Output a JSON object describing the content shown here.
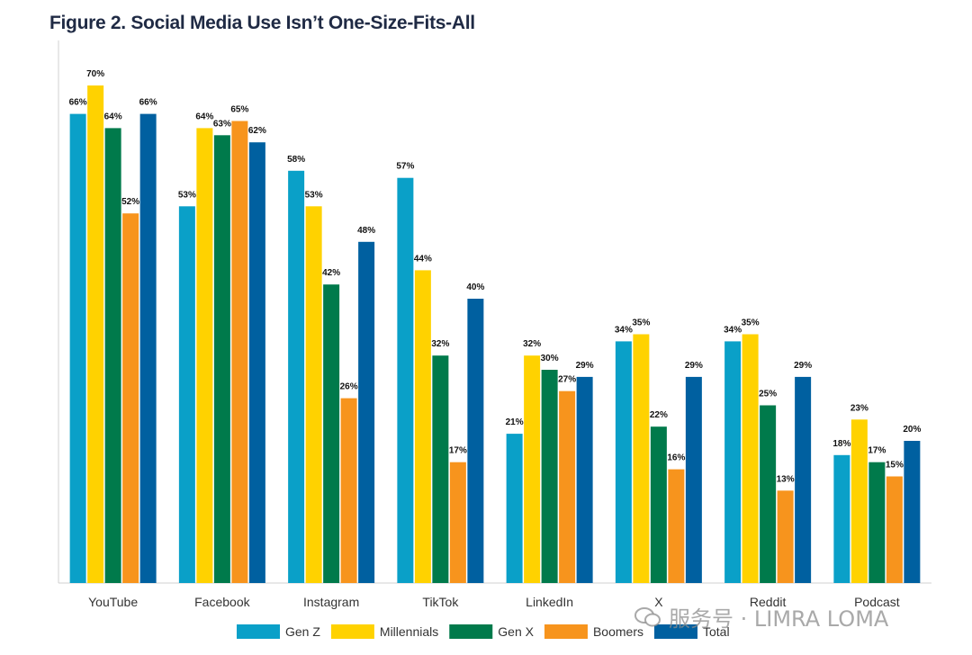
{
  "title": "Figure 2. Social Media Use Isn’t One-Size-Fits-All",
  "watermark": "服务号 · LIMRA LOMA",
  "chart_data": {
    "type": "bar",
    "categories": [
      "YouTube",
      "Facebook",
      "Instagram",
      "TikTok",
      "LinkedIn",
      "X",
      "Reddit",
      "Podcast"
    ],
    "series": [
      {
        "name": "Gen Z",
        "color": "#0aa0c8",
        "values": [
          66,
          53,
          58,
          57,
          21,
          34,
          34,
          18
        ]
      },
      {
        "name": "Millennials",
        "color": "#ffd200",
        "values": [
          70,
          64,
          53,
          44,
          32,
          35,
          35,
          23
        ]
      },
      {
        "name": "Gen X",
        "color": "#007a4b",
        "values": [
          64,
          63,
          42,
          32,
          30,
          22,
          25,
          17
        ]
      },
      {
        "name": "Boomers",
        "color": "#f7941d",
        "values": [
          52,
          65,
          26,
          17,
          27,
          16,
          13,
          15
        ]
      },
      {
        "name": "Total",
        "color": "#0060a0",
        "values": [
          66,
          62,
          48,
          40,
          29,
          29,
          29,
          20
        ]
      }
    ],
    "value_suffix": "%",
    "ylim": [
      0,
      70
    ],
    "grid": false,
    "legend_position": "bottom"
  }
}
